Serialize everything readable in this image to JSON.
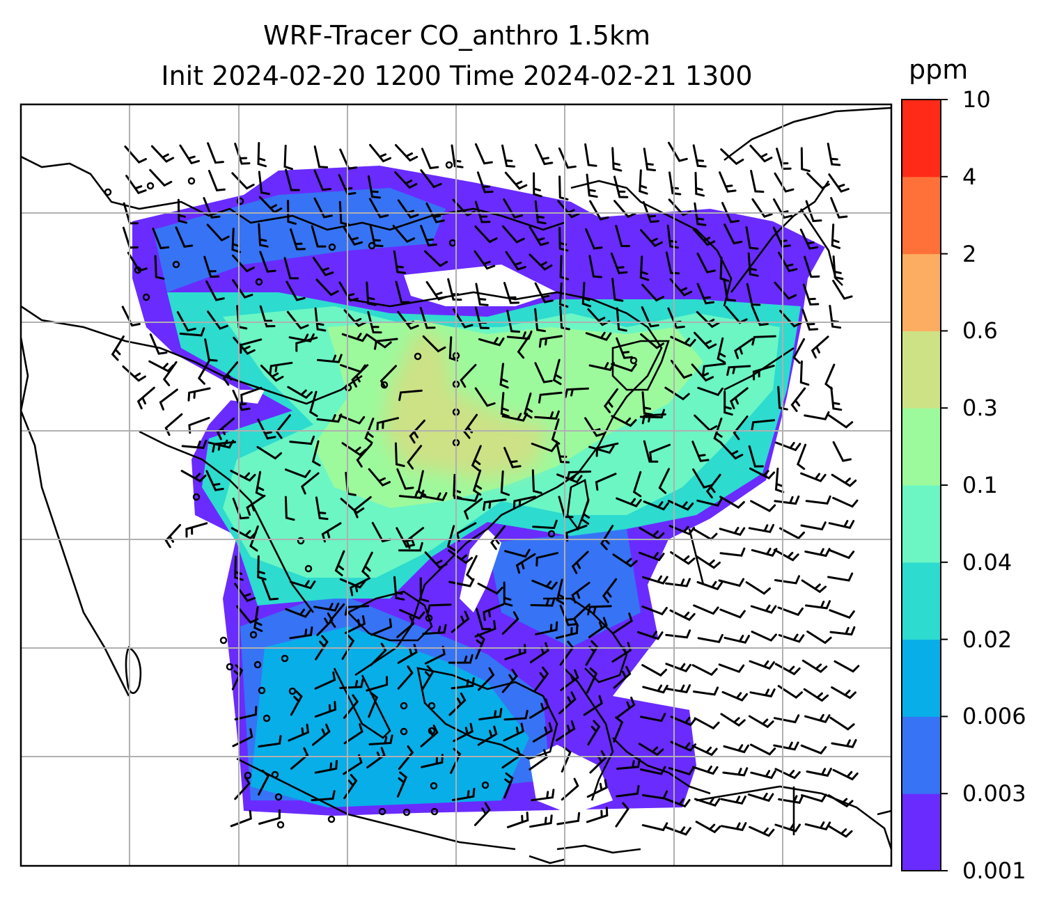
{
  "chart_data": {
    "type": "heatmap",
    "title_line1": "WRF-Tracer CO_anthro 1.5km",
    "title_line2": "Init 2024-02-20 1200 Time 2024-02-21 1300",
    "colorbar": {
      "unit_label": "ppm",
      "levels": [
        "0.001",
        "0.003",
        "0.006",
        "0.02",
        "0.04",
        "0.1",
        "0.3",
        "0.6",
        "2",
        "4",
        "10"
      ],
      "colors": [
        "#6a2bff",
        "#3674f5",
        "#08aee8",
        "#2ddbcf",
        "#6bf6c4",
        "#9cfa9c",
        "#cde185",
        "#fdad61",
        "#ff7138",
        "#ff2a17"
      ]
    },
    "grid": true,
    "wind_barbs": true,
    "coastlines": true
  }
}
